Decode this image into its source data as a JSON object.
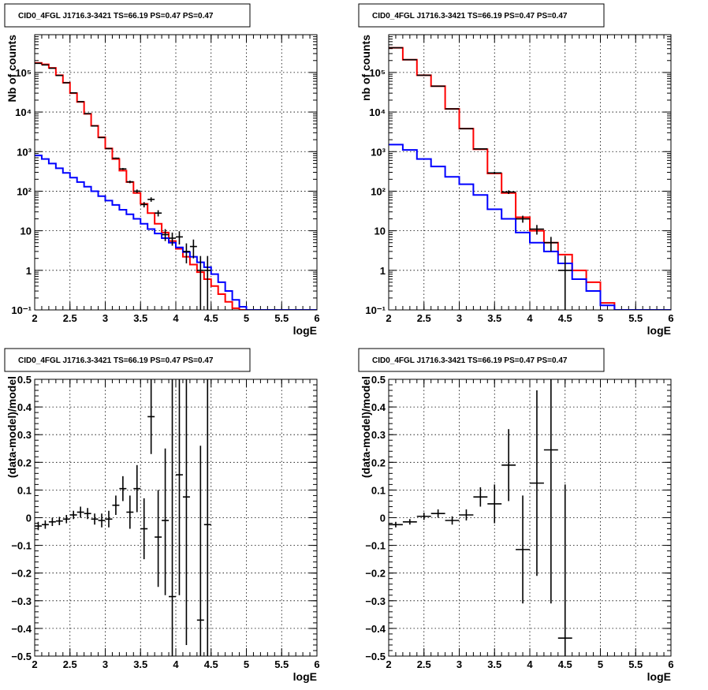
{
  "chart_data": [
    {
      "id": "p1",
      "type": "line",
      "title": "CID0_4FGL J1716.3-3421 TS=66.19 PS=0.47 PS=0.47",
      "xlabel": "logE",
      "ylabel": "Nb of counts",
      "log_y": true,
      "xlim": [
        2,
        6
      ],
      "ylim": [
        0.1,
        900000
      ],
      "grid": true,
      "x_ticks": [
        2,
        2.5,
        3,
        3.5,
        4,
        4.5,
        5,
        5.5,
        6
      ],
      "x_tick_labels": [
        "2",
        "2.5",
        "3",
        "3.5",
        "4",
        "4.5",
        "5",
        "5.5",
        "6"
      ],
      "y_ticks": [
        0.1,
        1,
        10,
        100,
        1000,
        10000,
        100000
      ],
      "y_tick_labels": [
        "10⁻¹",
        "1",
        "10",
        "10²",
        "10³",
        "10⁴",
        "10⁵"
      ],
      "bin_edges": [
        2.0,
        2.1,
        2.2,
        2.3,
        2.4,
        2.5,
        2.6,
        2.7,
        2.8,
        2.9,
        3.0,
        3.1,
        3.2,
        3.3,
        3.4,
        3.5,
        3.6,
        3.7,
        3.8,
        3.9,
        4.0,
        4.1,
        4.2,
        4.3,
        4.4,
        4.5,
        4.6,
        4.7,
        4.8,
        4.9,
        5.0,
        5.1,
        5.2,
        5.3,
        5.4,
        5.5,
        5.6,
        5.7,
        5.8,
        5.9,
        6.0
      ],
      "series": [
        {
          "style": "step",
          "color": "#ff0000",
          "values": [
            175000,
            160000,
            130000,
            85000,
            55000,
            30000,
            18000,
            9000,
            4500,
            2300,
            1200,
            650,
            330,
            170,
            90,
            48,
            28,
            15,
            9,
            5.5,
            3.5,
            2.2,
            1.4,
            0.9,
            0.6,
            0.4,
            0.25,
            0.16,
            0.11,
            0.1,
            0.1,
            0.1,
            0.1,
            0.1,
            0.1,
            0.1,
            0.1,
            0.1,
            0.1,
            0.1
          ]
        },
        {
          "style": "step",
          "color": "#0000ff",
          "values": [
            800,
            650,
            500,
            380,
            290,
            220,
            170,
            130,
            100,
            75,
            58,
            45,
            34,
            26,
            20,
            15,
            11,
            8.5,
            6.5,
            5,
            3.8,
            2.9,
            2.2,
            1.6,
            1.2,
            0.8,
            0.5,
            0.3,
            0.18,
            0.12,
            0.1,
            0.1,
            0.1,
            0.1,
            0.1,
            0.1,
            0.1,
            0.1,
            0.1,
            0.1
          ]
        }
      ],
      "points": [
        {
          "x": 2.05,
          "y": 170000,
          "lo": 169000,
          "hi": 171000
        },
        {
          "x": 2.15,
          "y": 155000,
          "lo": 154000,
          "hi": 156000
        },
        {
          "x": 2.25,
          "y": 128000,
          "lo": 127000,
          "hi": 129000
        },
        {
          "x": 2.35,
          "y": 84000,
          "lo": 83500,
          "hi": 84500
        },
        {
          "x": 2.45,
          "y": 55000,
          "lo": 54700,
          "hi": 55300
        },
        {
          "x": 2.55,
          "y": 30500,
          "lo": 30300,
          "hi": 30700
        },
        {
          "x": 2.65,
          "y": 18300,
          "lo": 18100,
          "hi": 18500
        },
        {
          "x": 2.75,
          "y": 9100,
          "lo": 9000,
          "hi": 9200
        },
        {
          "x": 2.85,
          "y": 4450,
          "lo": 4380,
          "hi": 4520
        },
        {
          "x": 2.95,
          "y": 2270,
          "lo": 2220,
          "hi": 2320
        },
        {
          "x": 3.05,
          "y": 1190,
          "lo": 1150,
          "hi": 1230
        },
        {
          "x": 3.15,
          "y": 680,
          "lo": 655,
          "hi": 705
        },
        {
          "x": 3.25,
          "y": 365,
          "lo": 345,
          "hi": 385
        },
        {
          "x": 3.35,
          "y": 172,
          "lo": 159,
          "hi": 185
        },
        {
          "x": 3.45,
          "y": 100,
          "lo": 90,
          "hi": 110
        },
        {
          "x": 3.55,
          "y": 46,
          "lo": 39,
          "hi": 53
        },
        {
          "x": 3.65,
          "y": 62,
          "lo": 54,
          "hi": 70
        },
        {
          "x": 3.75,
          "y": 28,
          "lo": 23,
          "hi": 33
        },
        {
          "x": 3.85,
          "y": 8,
          "lo": 5.5,
          "hi": 11
        },
        {
          "x": 3.95,
          "y": 6.5,
          "lo": 4.2,
          "hi": 9
        },
        {
          "x": 4.05,
          "y": 7,
          "lo": 4.5,
          "hi": 9.7
        },
        {
          "x": 4.15,
          "y": 3,
          "lo": 1.5,
          "hi": 4.8
        },
        {
          "x": 4.25,
          "y": 4,
          "lo": 2,
          "hi": 6
        },
        {
          "x": 4.35,
          "y": 1,
          "lo": 0.1,
          "hi": 2.3
        },
        {
          "x": 4.45,
          "y": 1,
          "lo": 0.1,
          "hi": 2.3
        }
      ]
    },
    {
      "id": "p2",
      "type": "line",
      "title": "CID0_4FGL J1716.3-3421 TS=66.19 PS=0.47 PS=0.47",
      "xlabel": "logE",
      "ylabel": "nb of counts",
      "log_y": true,
      "xlim": [
        2,
        6
      ],
      "ylim": [
        0.1,
        900000
      ],
      "grid": true,
      "x_ticks": [
        2,
        2.5,
        3,
        3.5,
        4,
        4.5,
        5,
        5.5,
        6
      ],
      "x_tick_labels": [
        "2",
        "2.5",
        "3",
        "3.5",
        "4",
        "4.5",
        "5",
        "5.5",
        "6"
      ],
      "y_ticks": [
        0.1,
        1,
        10,
        100,
        1000,
        10000,
        100000
      ],
      "y_tick_labels": [
        "10⁻¹",
        "1",
        "10",
        "10²",
        "10³",
        "10⁴",
        "10⁵"
      ],
      "bin_edges": [
        2.0,
        2.2,
        2.4,
        2.6,
        2.8,
        3.0,
        3.2,
        3.4,
        3.6,
        3.8,
        4.0,
        4.2,
        4.4,
        4.6,
        4.8,
        5.0,
        5.2,
        5.4,
        5.6,
        5.8,
        6.0
      ],
      "series": [
        {
          "style": "step",
          "color": "#ff0000",
          "values": [
            420000,
            210000,
            85000,
            45000,
            12000,
            3800,
            1150,
            280,
            90,
            22,
            10,
            5,
            2.5,
            1,
            0.5,
            0.15,
            0.1,
            0.1,
            0.1,
            0.1
          ]
        },
        {
          "style": "step",
          "color": "#0000ff",
          "values": [
            1500,
            1100,
            650,
            420,
            230,
            150,
            80,
            35,
            20,
            9,
            5,
            3,
            1.5,
            0.6,
            0.3,
            0.13,
            0.1,
            0.1,
            0.1,
            0.1
          ]
        }
      ],
      "points": [
        {
          "x": 2.1,
          "y": 420000,
          "lo": 418000,
          "hi": 422000
        },
        {
          "x": 2.3,
          "y": 210000,
          "lo": 209000,
          "hi": 211000
        },
        {
          "x": 2.5,
          "y": 85000,
          "lo": 84600,
          "hi": 85400
        },
        {
          "x": 2.7,
          "y": 45000,
          "lo": 44700,
          "hi": 45300
        },
        {
          "x": 2.9,
          "y": 12000,
          "lo": 11900,
          "hi": 12100
        },
        {
          "x": 3.1,
          "y": 3800,
          "lo": 3740,
          "hi": 3860
        },
        {
          "x": 3.3,
          "y": 1170,
          "lo": 1130,
          "hi": 1210
        },
        {
          "x": 3.5,
          "y": 290,
          "lo": 270,
          "hi": 310
        },
        {
          "x": 3.7,
          "y": 95,
          "lo": 85,
          "hi": 105
        },
        {
          "x": 3.9,
          "y": 20,
          "lo": 16,
          "hi": 24
        },
        {
          "x": 4.1,
          "y": 11,
          "lo": 8,
          "hi": 14
        },
        {
          "x": 4.3,
          "y": 5,
          "lo": 3,
          "hi": 7
        },
        {
          "x": 4.5,
          "y": 1,
          "lo": 0.1,
          "hi": 2.3
        }
      ]
    },
    {
      "id": "p3",
      "type": "scatter",
      "title": "CID0_4FGL J1716.3-3421 TS=66.19 PS=0.47 PS=0.47",
      "xlabel": "logE",
      "ylabel": "(data-model)/model",
      "log_y": false,
      "xlim": [
        2,
        6
      ],
      "ylim": [
        -0.5,
        0.5
      ],
      "grid": true,
      "x_ticks": [
        2,
        2.5,
        3,
        3.5,
        4,
        4.5,
        5,
        5.5,
        6
      ],
      "x_tick_labels": [
        "2",
        "2.5",
        "3",
        "3.5",
        "4",
        "4.5",
        "5",
        "5.5",
        "6"
      ],
      "y_ticks": [
        -0.5,
        -0.4,
        -0.3,
        -0.2,
        -0.1,
        0,
        0.1,
        0.2,
        0.3,
        0.4,
        0.5
      ],
      "y_tick_labels": [
        "−0.5",
        "−0.4",
        "−0.3",
        "−0.2",
        "−0.1",
        "0",
        "0.1",
        "0.2",
        "0.3",
        "0.4",
        "0.5"
      ],
      "half_width": 0.05,
      "points": [
        {
          "x": 2.05,
          "y": -0.03,
          "lo": -0.045,
          "hi": -0.015
        },
        {
          "x": 2.15,
          "y": -0.025,
          "lo": -0.04,
          "hi": -0.01
        },
        {
          "x": 2.25,
          "y": -0.015,
          "lo": -0.03,
          "hi": 0.0
        },
        {
          "x": 2.35,
          "y": -0.012,
          "lo": -0.027,
          "hi": 0.003
        },
        {
          "x": 2.45,
          "y": -0.005,
          "lo": -0.02,
          "hi": 0.01
        },
        {
          "x": 2.55,
          "y": 0.01,
          "lo": -0.005,
          "hi": 0.025
        },
        {
          "x": 2.65,
          "y": 0.02,
          "lo": 0.0,
          "hi": 0.04
        },
        {
          "x": 2.75,
          "y": 0.015,
          "lo": -0.005,
          "hi": 0.035
        },
        {
          "x": 2.85,
          "y": -0.005,
          "lo": -0.025,
          "hi": 0.015
        },
        {
          "x": 2.95,
          "y": -0.01,
          "lo": -0.035,
          "hi": 0.015
        },
        {
          "x": 3.05,
          "y": -0.005,
          "lo": -0.035,
          "hi": 0.025
        },
        {
          "x": 3.15,
          "y": 0.045,
          "lo": 0.01,
          "hi": 0.08
        },
        {
          "x": 3.25,
          "y": 0.105,
          "lo": 0.06,
          "hi": 0.15
        },
        {
          "x": 3.35,
          "y": 0.02,
          "lo": -0.04,
          "hi": 0.08
        },
        {
          "x": 3.45,
          "y": 0.105,
          "lo": 0.02,
          "hi": 0.19
        },
        {
          "x": 3.55,
          "y": -0.04,
          "lo": -0.15,
          "hi": 0.07
        },
        {
          "x": 3.65,
          "y": 0.365,
          "lo": 0.23,
          "hi": 0.5
        },
        {
          "x": 3.75,
          "y": -0.07,
          "lo": -0.25,
          "hi": 0.1
        },
        {
          "x": 3.85,
          "y": -0.01,
          "lo": -0.28,
          "hi": 0.25
        },
        {
          "x": 3.95,
          "y": -0.285,
          "lo": -0.5,
          "hi": 0.5
        },
        {
          "x": 4.05,
          "y": 0.155,
          "lo": -0.28,
          "hi": 0.5
        },
        {
          "x": 4.15,
          "y": 0.075,
          "lo": -0.46,
          "hi": 0.5
        },
        {
          "x": 4.35,
          "y": -0.37,
          "lo": -0.5,
          "hi": 0.26
        },
        {
          "x": 4.45,
          "y": -0.025,
          "lo": -0.5,
          "hi": 0.5
        }
      ]
    },
    {
      "id": "p4",
      "type": "scatter",
      "title": "CID0_4FGL J1716.3-3421 TS=66.19 PS=0.47 PS=0.47",
      "xlabel": "logE",
      "ylabel": "(data-model)/model",
      "log_y": false,
      "xlim": [
        2,
        6
      ],
      "ylim": [
        -0.5,
        0.5
      ],
      "grid": true,
      "x_ticks": [
        2,
        2.5,
        3,
        3.5,
        4,
        4.5,
        5,
        5.5,
        6
      ],
      "x_tick_labels": [
        "2",
        "2.5",
        "3",
        "3.5",
        "4",
        "4.5",
        "5",
        "5.5",
        "6"
      ],
      "y_ticks": [
        -0.5,
        -0.4,
        -0.3,
        -0.2,
        -0.1,
        0,
        0.1,
        0.2,
        0.3,
        0.4,
        0.5
      ],
      "y_tick_labels": [
        "−0.5",
        "−0.4",
        "−0.3",
        "−0.2",
        "−0.1",
        "0",
        "0.1",
        "0.2",
        "0.3",
        "0.4",
        "0.5"
      ],
      "half_width": 0.1,
      "points": [
        {
          "x": 2.1,
          "y": -0.025,
          "lo": -0.035,
          "hi": -0.015
        },
        {
          "x": 2.3,
          "y": -0.015,
          "lo": -0.025,
          "hi": -0.005
        },
        {
          "x": 2.5,
          "y": 0.005,
          "lo": -0.008,
          "hi": 0.018
        },
        {
          "x": 2.7,
          "y": 0.015,
          "lo": 0.0,
          "hi": 0.03
        },
        {
          "x": 2.9,
          "y": -0.01,
          "lo": -0.025,
          "hi": 0.005
        },
        {
          "x": 3.1,
          "y": 0.01,
          "lo": -0.01,
          "hi": 0.03
        },
        {
          "x": 3.3,
          "y": 0.075,
          "lo": 0.04,
          "hi": 0.11
        },
        {
          "x": 3.5,
          "y": 0.05,
          "lo": -0.02,
          "hi": 0.12
        },
        {
          "x": 3.7,
          "y": 0.19,
          "lo": 0.06,
          "hi": 0.32
        },
        {
          "x": 3.9,
          "y": -0.115,
          "lo": -0.31,
          "hi": 0.08
        },
        {
          "x": 4.1,
          "y": 0.125,
          "lo": -0.21,
          "hi": 0.46
        },
        {
          "x": 4.3,
          "y": 0.245,
          "lo": -0.31,
          "hi": 0.5
        },
        {
          "x": 4.5,
          "y": -0.435,
          "lo": -0.5,
          "hi": 0.12
        }
      ]
    }
  ]
}
